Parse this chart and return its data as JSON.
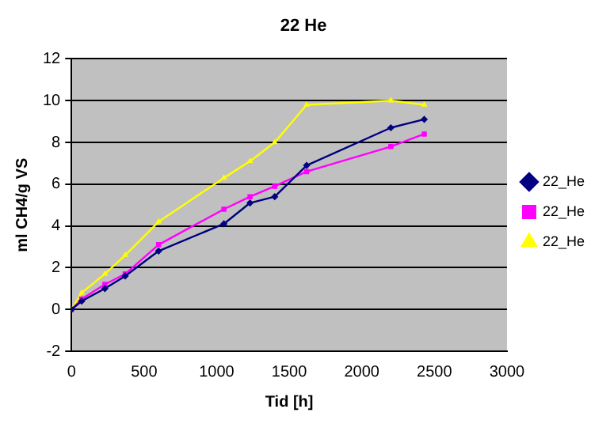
{
  "chart_data": {
    "type": "line",
    "title": "22 He",
    "xlabel": "Tid [h]",
    "ylabel": "ml CH4/g VS",
    "x": [
      0,
      70,
      230,
      370,
      600,
      1050,
      1230,
      1400,
      1620,
      2200,
      2430
    ],
    "series": [
      {
        "name": "22_He",
        "color": "#000080",
        "marker": "diamond",
        "values": [
          0,
          0.4,
          1.0,
          1.6,
          2.8,
          4.1,
          5.1,
          5.4,
          6.9,
          8.7,
          9.1
        ]
      },
      {
        "name": "22_He",
        "color": "#ff00ff",
        "marker": "square",
        "values": [
          0,
          0.5,
          1.2,
          1.7,
          3.1,
          4.8,
          5.4,
          5.9,
          6.6,
          7.8,
          8.4
        ]
      },
      {
        "name": "22_He",
        "color": "#ffff00",
        "marker": "triangle",
        "values": [
          0,
          0.8,
          1.7,
          2.6,
          4.2,
          6.3,
          7.1,
          8.0,
          9.8,
          10.0,
          9.8
        ]
      }
    ],
    "xlim": [
      0,
      3000
    ],
    "xticks": [
      0,
      500,
      1000,
      1500,
      2000,
      2500,
      3000
    ],
    "ylim": [
      -2,
      12
    ],
    "yticks": [
      -2,
      0,
      2,
      4,
      6,
      8,
      10,
      12
    ],
    "grid": "y",
    "legend": "right"
  }
}
